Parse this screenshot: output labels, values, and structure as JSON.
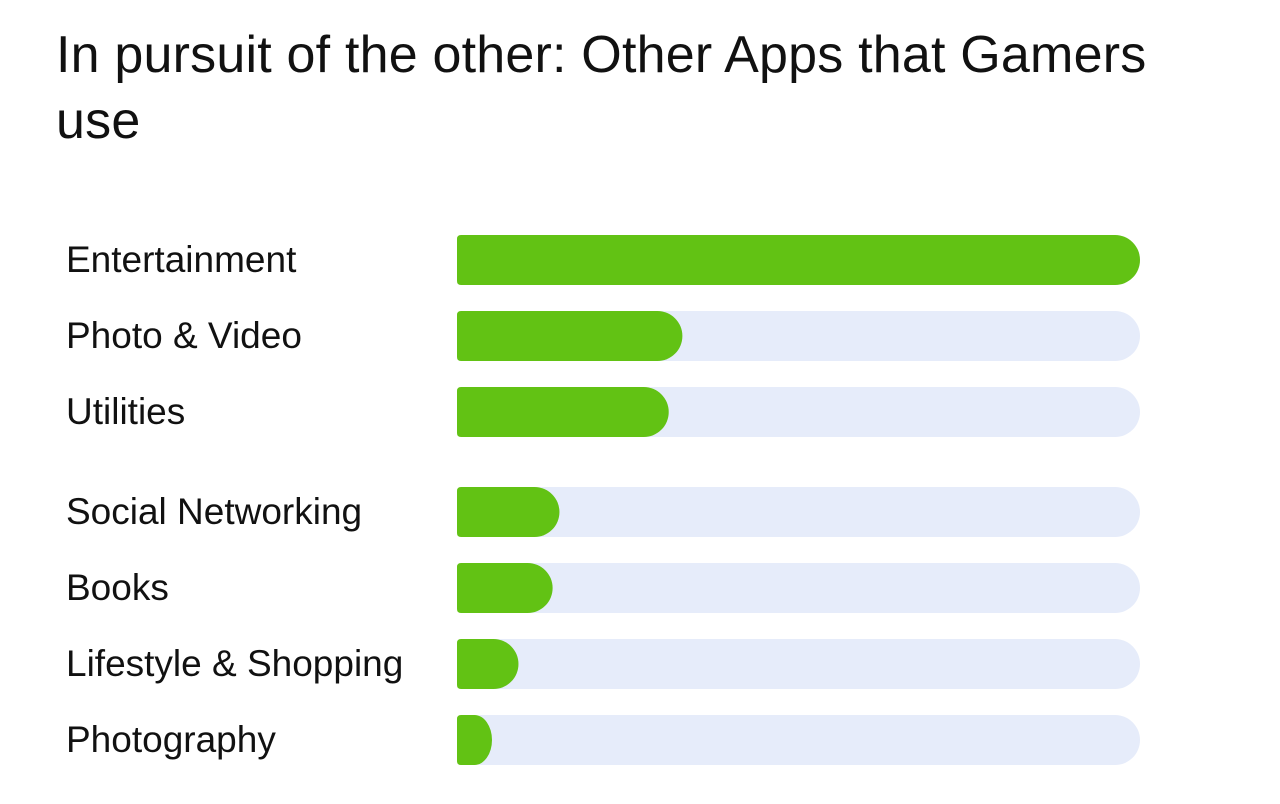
{
  "title": "In pursuit of the other: Other Apps that Gamers use",
  "colors": {
    "bar": "#62c214",
    "track": "#e6ecfa",
    "text": "#111111"
  },
  "chart_data": {
    "type": "bar",
    "orientation": "horizontal",
    "title": "In pursuit of the other: Other Apps that Gamers use",
    "xlabel": "",
    "ylabel": "",
    "categories": [
      "Entertainment",
      "Photo & Video",
      "Utilities",
      "Social Networking",
      "Books",
      "Lifestyle & Shopping",
      "Photography"
    ],
    "values": [
      100,
      33,
      31,
      15,
      14,
      9,
      5
    ],
    "xlim": [
      0,
      100
    ],
    "grid": false,
    "legend": "none"
  }
}
